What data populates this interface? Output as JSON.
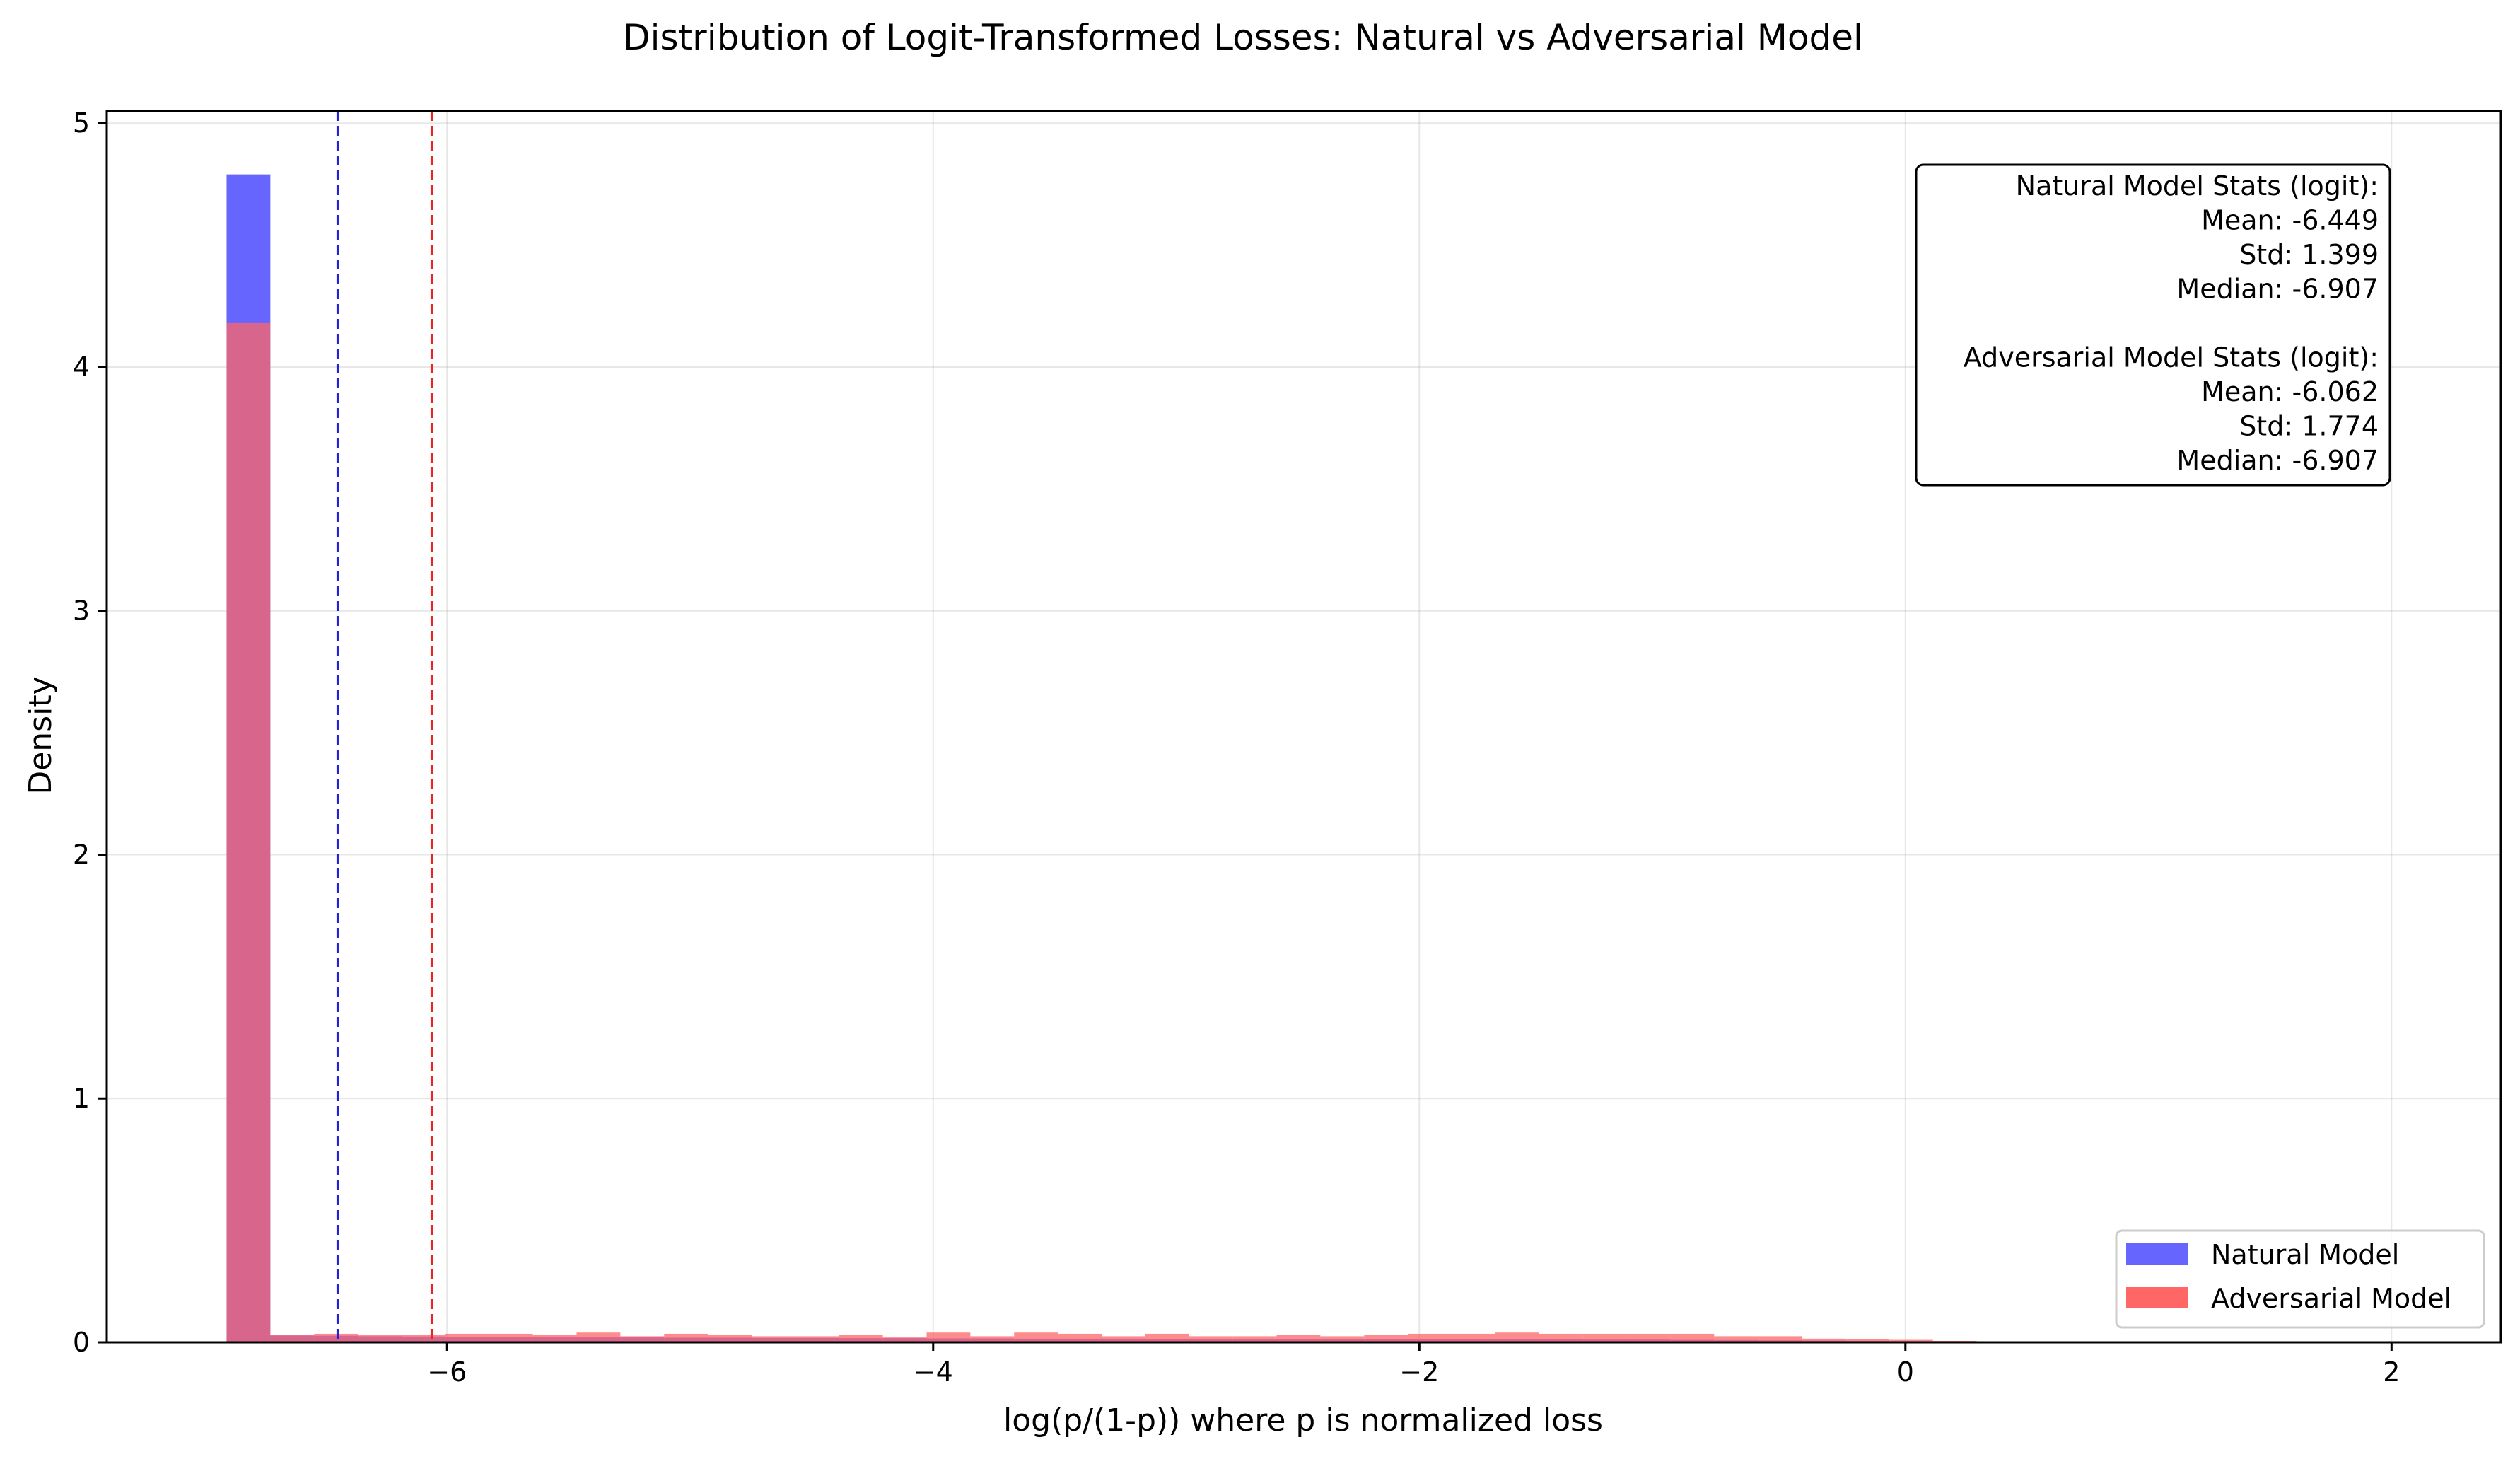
{
  "chart_data": {
    "type": "histogram",
    "title": "Distribution of Logit-Transformed Losses: Natural vs Adversarial Model",
    "xlabel": "log(p/(1-p)) where p is normalized loss",
    "ylabel": "Density",
    "xlim": [
      -7.4,
      2.45
    ],
    "ylim": [
      0,
      5.05
    ],
    "xticks": [
      -6,
      -4,
      -2,
      0,
      2
    ],
    "xtick_labels": [
      "−6",
      "−4",
      "−2",
      "0",
      "2"
    ],
    "yticks": [
      0,
      1,
      2,
      3,
      4,
      5
    ],
    "ytick_labels": [
      "0",
      "1",
      "2",
      "3",
      "4",
      "5"
    ],
    "grid": true,
    "legend_position": "lower right",
    "series": [
      {
        "name": "Natural Model",
        "color": "#6666ff",
        "bins": [
          {
            "x0": -6.907,
            "x1": -6.727,
            "y": 4.79
          },
          {
            "x0": -6.727,
            "x1": -6.547,
            "y": 0.028
          },
          {
            "x0": -6.547,
            "x1": -6.367,
            "y": 0.027
          },
          {
            "x0": -6.367,
            "x1": -6.187,
            "y": 0.025
          },
          {
            "x0": -6.187,
            "x1": -6.007,
            "y": 0.024
          },
          {
            "x0": -6.007,
            "x1": -5.827,
            "y": 0.023
          },
          {
            "x0": -5.827,
            "x1": -5.647,
            "y": 0.022
          },
          {
            "x0": -5.647,
            "x1": -5.467,
            "y": 0.021
          },
          {
            "x0": -5.467,
            "x1": -5.287,
            "y": 0.02
          },
          {
            "x0": -5.287,
            "x1": -5.107,
            "y": 0.02
          },
          {
            "x0": -5.107,
            "x1": -4.927,
            "y": 0.019
          },
          {
            "x0": -4.927,
            "x1": -4.747,
            "y": 0.019
          },
          {
            "x0": -4.747,
            "x1": -4.567,
            "y": 0.018
          },
          {
            "x0": -4.567,
            "x1": -4.387,
            "y": 0.018
          },
          {
            "x0": -4.387,
            "x1": -4.207,
            "y": 0.017
          },
          {
            "x0": -4.207,
            "x1": -4.027,
            "y": 0.017
          },
          {
            "x0": -4.027,
            "x1": -3.847,
            "y": 0.016
          },
          {
            "x0": -3.847,
            "x1": -3.667,
            "y": 0.016
          },
          {
            "x0": -3.667,
            "x1": -3.487,
            "y": 0.015
          },
          {
            "x0": -3.487,
            "x1": -3.307,
            "y": 0.015
          },
          {
            "x0": -3.307,
            "x1": -3.127,
            "y": 0.015
          },
          {
            "x0": -3.127,
            "x1": -2.947,
            "y": 0.014
          },
          {
            "x0": -2.947,
            "x1": -2.767,
            "y": 0.014
          },
          {
            "x0": -2.767,
            "x1": -2.587,
            "y": 0.014
          },
          {
            "x0": -2.587,
            "x1": -2.407,
            "y": 0.013
          },
          {
            "x0": -2.407,
            "x1": -2.227,
            "y": 0.013
          },
          {
            "x0": -2.227,
            "x1": -2.047,
            "y": 0.013
          },
          {
            "x0": -2.047,
            "x1": -1.867,
            "y": 0.013
          },
          {
            "x0": -1.867,
            "x1": -1.687,
            "y": 0.012
          },
          {
            "x0": -1.687,
            "x1": -1.507,
            "y": 0.012
          },
          {
            "x0": -1.507,
            "x1": -1.327,
            "y": 0.012
          },
          {
            "x0": -1.327,
            "x1": -1.147,
            "y": 0.011
          },
          {
            "x0": -1.147,
            "x1": -0.967,
            "y": 0.011
          },
          {
            "x0": -0.967,
            "x1": -0.787,
            "y": 0.01
          },
          {
            "x0": -0.787,
            "x1": -0.607,
            "y": 0.009
          },
          {
            "x0": -0.607,
            "x1": -0.427,
            "y": 0.008
          },
          {
            "x0": -0.427,
            "x1": -0.247,
            "y": 0.007
          },
          {
            "x0": -0.247,
            "x1": -0.067,
            "y": 0.006
          },
          {
            "x0": -0.067,
            "x1": 0.113,
            "y": 0.005
          },
          {
            "x0": 0.113,
            "x1": 0.293,
            "y": 0.004
          },
          {
            "x0": 0.293,
            "x1": 0.473,
            "y": 0.003
          },
          {
            "x0": 0.473,
            "x1": 0.553,
            "y": 0.003
          }
        ],
        "mean_line": -6.449,
        "stats": {
          "mean": -6.449,
          "std": 1.399,
          "median": -6.907
        }
      },
      {
        "name": "Adversarial Model",
        "color": "#ff6666",
        "bins": [
          {
            "x0": -6.907,
            "x1": -6.727,
            "y": 4.18
          },
          {
            "x0": -6.727,
            "x1": -6.547,
            "y": 0.03
          },
          {
            "x0": -6.547,
            "x1": -6.367,
            "y": 0.035
          },
          {
            "x0": -6.367,
            "x1": -6.187,
            "y": 0.03
          },
          {
            "x0": -6.187,
            "x1": -6.007,
            "y": 0.03
          },
          {
            "x0": -6.007,
            "x1": -5.827,
            "y": 0.035
          },
          {
            "x0": -5.827,
            "x1": -5.647,
            "y": 0.035
          },
          {
            "x0": -5.647,
            "x1": -5.467,
            "y": 0.03
          },
          {
            "x0": -5.467,
            "x1": -5.287,
            "y": 0.04
          },
          {
            "x0": -5.287,
            "x1": -5.107,
            "y": 0.025
          },
          {
            "x0": -5.107,
            "x1": -4.927,
            "y": 0.035
          },
          {
            "x0": -4.927,
            "x1": -4.747,
            "y": 0.03
          },
          {
            "x0": -4.747,
            "x1": -4.567,
            "y": 0.025
          },
          {
            "x0": -4.567,
            "x1": -4.387,
            "y": 0.025
          },
          {
            "x0": -4.387,
            "x1": -4.207,
            "y": 0.03
          },
          {
            "x0": -4.207,
            "x1": -4.027,
            "y": 0.02
          },
          {
            "x0": -4.027,
            "x1": -3.847,
            "y": 0.04
          },
          {
            "x0": -3.847,
            "x1": -3.667,
            "y": 0.025
          },
          {
            "x0": -3.667,
            "x1": -3.487,
            "y": 0.04
          },
          {
            "x0": -3.487,
            "x1": -3.307,
            "y": 0.035
          },
          {
            "x0": -3.307,
            "x1": -3.127,
            "y": 0.025
          },
          {
            "x0": -3.127,
            "x1": -2.947,
            "y": 0.035
          },
          {
            "x0": -2.947,
            "x1": -2.767,
            "y": 0.025
          },
          {
            "x0": -2.767,
            "x1": -2.587,
            "y": 0.025
          },
          {
            "x0": -2.587,
            "x1": -2.407,
            "y": 0.03
          },
          {
            "x0": -2.407,
            "x1": -2.227,
            "y": 0.025
          },
          {
            "x0": -2.227,
            "x1": -2.047,
            "y": 0.03
          },
          {
            "x0": -2.047,
            "x1": -1.867,
            "y": 0.035
          },
          {
            "x0": -1.867,
            "x1": -1.687,
            "y": 0.035
          },
          {
            "x0": -1.687,
            "x1": -1.507,
            "y": 0.04
          },
          {
            "x0": -1.507,
            "x1": -1.327,
            "y": 0.035
          },
          {
            "x0": -1.327,
            "x1": -1.147,
            "y": 0.035
          },
          {
            "x0": -1.147,
            "x1": -0.967,
            "y": 0.035
          },
          {
            "x0": -0.967,
            "x1": -0.787,
            "y": 0.035
          },
          {
            "x0": -0.787,
            "x1": -0.607,
            "y": 0.025
          },
          {
            "x0": -0.607,
            "x1": -0.427,
            "y": 0.025
          },
          {
            "x0": -0.427,
            "x1": -0.247,
            "y": 0.015
          },
          {
            "x0": -0.247,
            "x1": -0.067,
            "y": 0.012
          },
          {
            "x0": -0.067,
            "x1": 0.113,
            "y": 0.01
          },
          {
            "x0": 0.113,
            "x1": 0.293,
            "y": 0.006
          }
        ],
        "mean_line": -6.062,
        "stats": {
          "mean": -6.062,
          "std": 1.774,
          "median": -6.907
        }
      }
    ],
    "overlap_color": "#c2285f",
    "mean_line_colors": {
      "natural": "#2222dd",
      "adversarial": "#ee2222"
    },
    "stats_box": {
      "lines": [
        "Natural Model Stats (logit):",
        "Mean: -6.449",
        "Std: 1.399",
        "Median: -6.907",
        "",
        "Adversarial Model Stats (logit):",
        "Mean: -6.062",
        "Std: 1.774",
        "Median: -6.907"
      ]
    },
    "legend": [
      {
        "label": "Natural Model",
        "color": "#6666ff"
      },
      {
        "label": "Adversarial Model",
        "color": "#ff6666"
      }
    ]
  }
}
